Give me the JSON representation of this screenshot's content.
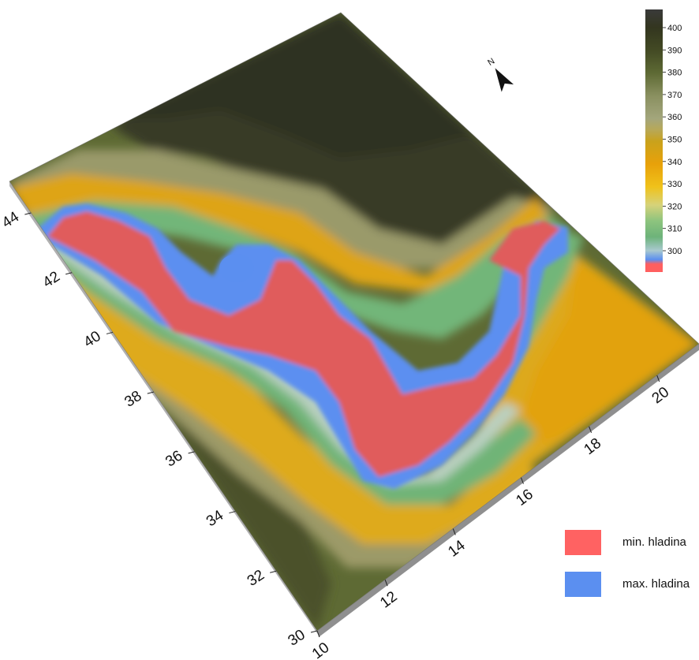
{
  "map": {
    "x_axis": {
      "ticks": [
        "10",
        "12",
        "14",
        "16",
        "18",
        "20"
      ]
    },
    "y_axis": {
      "ticks": [
        "30",
        "32",
        "34",
        "36",
        "38",
        "40",
        "42",
        "44"
      ]
    },
    "north_label": "N",
    "north_icon": "north-arrow-icon"
  },
  "colorbar": {
    "labels": [
      "400",
      "390",
      "380",
      "370",
      "360",
      "350",
      "340",
      "330",
      "320",
      "310",
      "300"
    ],
    "stops": [
      {
        "value": 408,
        "color": "#3a3a3a"
      },
      {
        "value": 400,
        "color": "#33361f"
      },
      {
        "value": 390,
        "color": "#434a24"
      },
      {
        "value": 380,
        "color": "#5e6a34"
      },
      {
        "value": 370,
        "color": "#8a9060"
      },
      {
        "value": 360,
        "color": "#a3a67c"
      },
      {
        "value": 355,
        "color": "#b8a857"
      },
      {
        "value": 350,
        "color": "#c9a21c"
      },
      {
        "value": 340,
        "color": "#e8a10a"
      },
      {
        "value": 330,
        "color": "#f0c21a"
      },
      {
        "value": 322,
        "color": "#d6d27a"
      },
      {
        "value": 315,
        "color": "#8dc47e"
      },
      {
        "value": 308,
        "color": "#6db37a"
      },
      {
        "value": 302,
        "color": "#a9c9cf"
      },
      {
        "value": 298,
        "color": "#5b8ff0"
      },
      {
        "value": 295,
        "color": "#ff5f5f"
      }
    ]
  },
  "legend": {
    "items": [
      {
        "label": "min. hladina",
        "color": "#ff6262"
      },
      {
        "label": "max. hladina",
        "color": "#5b8ff0"
      }
    ]
  },
  "colors": {
    "min_level": "#e55a5a",
    "max_level": "#5b8ff0",
    "green_band": "#72b679",
    "light_band": "#a9c7a0",
    "yellow_band": "#d9a617",
    "orange_band": "#e3a312",
    "olive_band": "#8c8d5e",
    "dark_olive": "#4f5630",
    "darkest": "#333526",
    "edge": "#9a9a9a"
  }
}
